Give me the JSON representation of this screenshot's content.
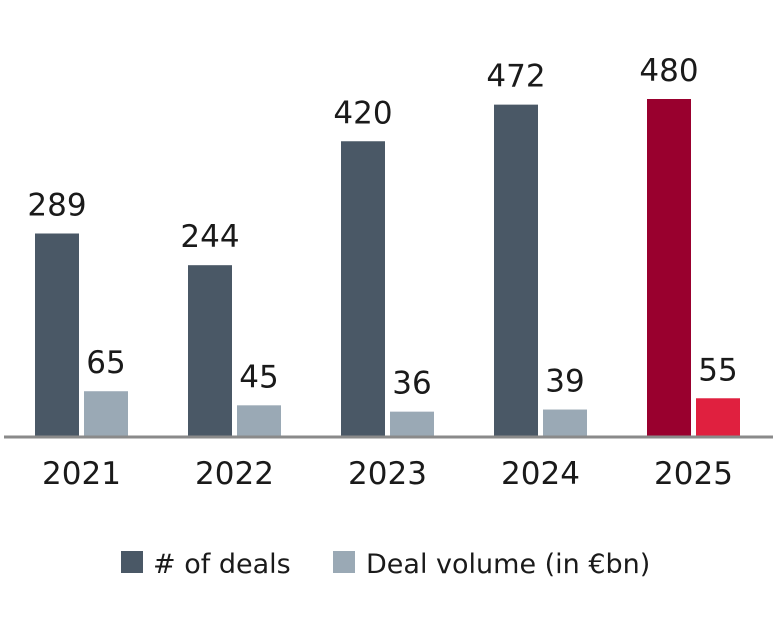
{
  "chart_data": {
    "type": "bar",
    "categories": [
      "2021",
      "2022",
      "2023",
      "2024",
      "2025"
    ],
    "series": [
      {
        "name": "# of deals",
        "values": [
          289,
          244,
          420,
          472,
          480
        ],
        "color": "#4a5866",
        "highlight_color": "#99002e"
      },
      {
        "name": "Deal volume (in €bn)",
        "values": [
          65,
          45,
          36,
          39,
          55
        ],
        "color": "#9aa9b5",
        "highlight_color": "#e0203f"
      }
    ],
    "highlight_category": "2025",
    "legend_position": "bottom-center",
    "grid": false,
    "axis_color": "#8a8a8a"
  }
}
